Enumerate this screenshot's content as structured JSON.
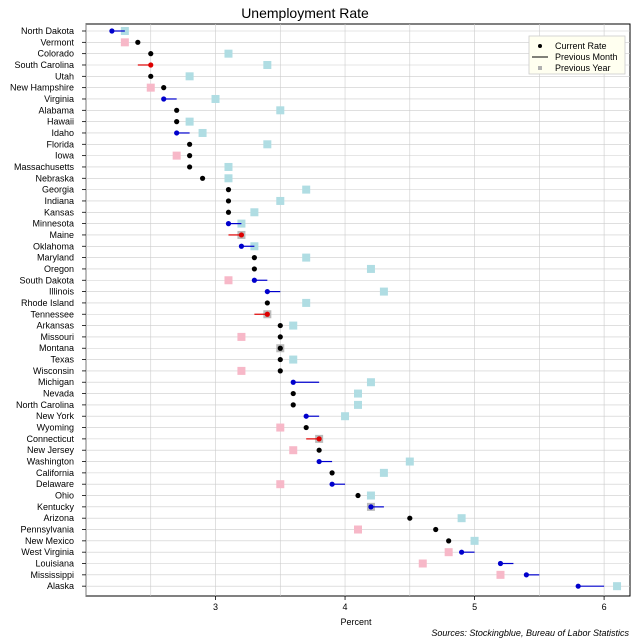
{
  "chart_data": {
    "type": "scatter",
    "title": "Unemployment Rate",
    "xlabel": "Percent",
    "ylabel": "",
    "source": "Sources: Stockingblue, Bureau of Labor Statistics",
    "xlim": [
      2.0,
      6.2
    ],
    "xticks": [
      3,
      4,
      5,
      6
    ],
    "grid": true,
    "legend_position": "top-right",
    "legend": {
      "current": "Current Rate",
      "previous_month": "Previous Month",
      "previous_year": "Previous Year"
    },
    "colors": {
      "same": "#000000",
      "improved": "#0000cc",
      "worsened": "#dd0000",
      "prev_year_higher": "#b0dde3",
      "prev_year_lower": "#f7b8c8",
      "grid": "#cccccc"
    },
    "states": [
      "North Dakota",
      "Vermont",
      "Colorado",
      "South Carolina",
      "Utah",
      "New Hampshire",
      "Virginia",
      "Alabama",
      "Hawaii",
      "Idaho",
      "Florida",
      "Iowa",
      "Massachusetts",
      "Nebraska",
      "Georgia",
      "Indiana",
      "Kansas",
      "Minnesota",
      "Maine",
      "Oklahoma",
      "Maryland",
      "Oregon",
      "South Dakota",
      "Illinois",
      "Rhode Island",
      "Tennessee",
      "Arkansas",
      "Missouri",
      "Montana",
      "Texas",
      "Wisconsin",
      "Michigan",
      "Nevada",
      "North Carolina",
      "New York",
      "Wyoming",
      "Connecticut",
      "New Jersey",
      "Washington",
      "California",
      "Delaware",
      "Ohio",
      "Kentucky",
      "Arizona",
      "Pennsylvania",
      "New Mexico",
      "West Virginia",
      "Louisiana",
      "Mississippi",
      "Alaska"
    ],
    "series": [
      {
        "name": "Current Rate",
        "values": [
          2.2,
          2.4,
          2.5,
          2.5,
          2.5,
          2.6,
          2.6,
          2.7,
          2.7,
          2.7,
          2.8,
          2.8,
          2.8,
          2.9,
          3.1,
          3.1,
          3.1,
          3.1,
          3.2,
          3.2,
          3.3,
          3.3,
          3.3,
          3.4,
          3.4,
          3.4,
          3.5,
          3.5,
          3.5,
          3.5,
          3.5,
          3.6,
          3.6,
          3.6,
          3.7,
          3.7,
          3.8,
          3.8,
          3.8,
          3.9,
          3.9,
          4.1,
          4.2,
          4.5,
          4.7,
          4.8,
          4.9,
          5.2,
          5.4,
          5.8
        ]
      },
      {
        "name": "Previous Month",
        "values": [
          2.3,
          2.4,
          2.5,
          2.4,
          2.5,
          2.6,
          2.7,
          2.7,
          2.7,
          2.8,
          2.8,
          2.8,
          2.8,
          2.9,
          3.1,
          3.1,
          3.1,
          3.2,
          3.1,
          3.3,
          3.3,
          3.3,
          3.4,
          3.5,
          3.4,
          3.3,
          3.5,
          3.5,
          3.5,
          3.5,
          3.5,
          3.8,
          3.6,
          3.6,
          3.8,
          3.7,
          3.7,
          3.8,
          3.9,
          3.9,
          4.0,
          4.1,
          4.3,
          4.5,
          4.7,
          4.8,
          5.0,
          5.3,
          5.5,
          6.0
        ]
      },
      {
        "name": "Previous Year",
        "values": [
          2.3,
          2.3,
          3.1,
          3.4,
          2.8,
          2.5,
          3.0,
          3.5,
          2.8,
          2.9,
          3.4,
          2.7,
          3.1,
          3.1,
          3.7,
          3.5,
          3.3,
          3.2,
          3.2,
          3.3,
          3.7,
          4.2,
          3.1,
          4.3,
          3.7,
          3.4,
          3.6,
          3.2,
          3.5,
          3.6,
          3.2,
          4.2,
          4.1,
          4.1,
          4.0,
          3.5,
          3.8,
          3.6,
          4.5,
          4.3,
          3.5,
          4.2,
          4.2,
          4.9,
          4.1,
          5.0,
          4.8,
          4.6,
          5.2,
          6.1
        ]
      }
    ]
  }
}
